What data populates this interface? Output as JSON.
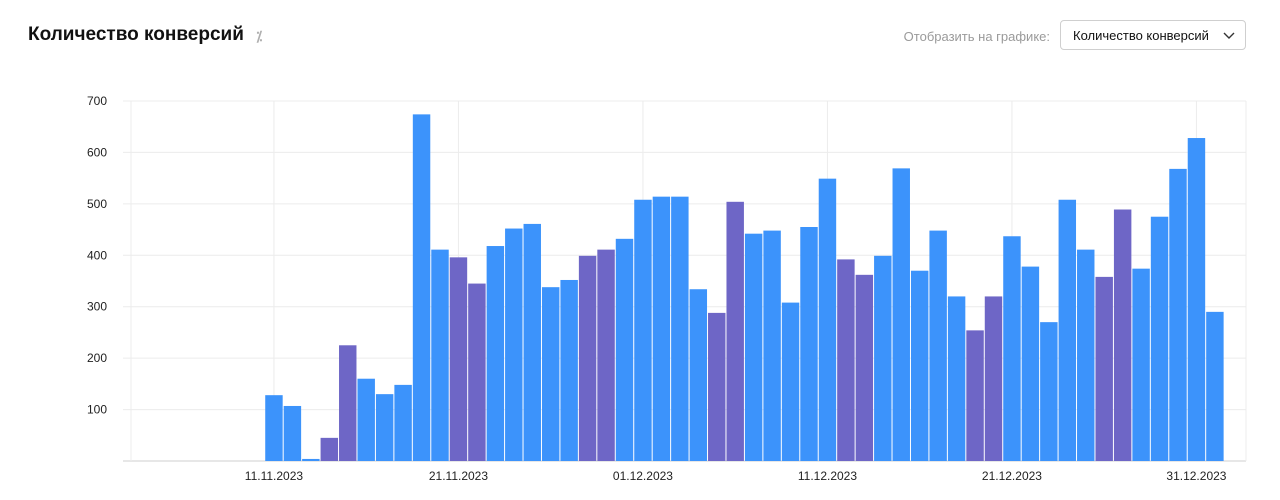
{
  "header": {
    "title": "Количество конверсий",
    "percent_icon": "percent-icon",
    "display_label": "Отобразить на графике:",
    "select_value": "Количество конверсий",
    "select_icon": "chevron-down-icon"
  },
  "colors": {
    "weekday": "#3c93fb",
    "weekend": "#6e66c6",
    "holiday_label": "#d0021b",
    "grid": "#ececec",
    "axis": "#cfcfcf"
  },
  "chart_data": {
    "type": "bar",
    "title": "Количество конверсий",
    "xlabel": "",
    "ylabel": "",
    "ylim": [
      0,
      700
    ],
    "yticks": [
      100,
      200,
      300,
      400,
      500,
      600,
      700
    ],
    "x_range": [
      "2023-11-04",
      "2023-12-31"
    ],
    "xticks": [
      {
        "date": "2023-11-11",
        "label": "11.11.2023",
        "highlight": true
      },
      {
        "date": "2023-11-21",
        "label": "21.11.2023",
        "highlight": false
      },
      {
        "date": "2023-12-01",
        "label": "01.12.2023",
        "highlight": false
      },
      {
        "date": "2023-12-11",
        "label": "11.12.2023",
        "highlight": false
      },
      {
        "date": "2023-12-21",
        "label": "21.12.2023",
        "highlight": false
      },
      {
        "date": "2023-12-31",
        "label": "31.12.2023",
        "highlight": true
      }
    ],
    "grid": true,
    "legend": "none",
    "bars": [
      {
        "date": "2023-11-11",
        "value": 128,
        "weekend": false
      },
      {
        "date": "2023-11-12",
        "value": 107,
        "weekend": false
      },
      {
        "date": "2023-11-13",
        "value": 4,
        "weekend": false
      },
      {
        "date": "2023-11-14",
        "value": 45,
        "weekend": true
      },
      {
        "date": "2023-11-15",
        "value": 225,
        "weekend": true
      },
      {
        "date": "2023-11-16",
        "value": 160,
        "weekend": false
      },
      {
        "date": "2023-11-17",
        "value": 130,
        "weekend": false
      },
      {
        "date": "2023-11-18",
        "value": 148,
        "weekend": false
      },
      {
        "date": "2023-11-19",
        "value": 674,
        "weekend": false
      },
      {
        "date": "2023-11-20",
        "value": 411,
        "weekend": false
      },
      {
        "date": "2023-11-21",
        "value": 396,
        "weekend": true
      },
      {
        "date": "2023-11-22",
        "value": 345,
        "weekend": true
      },
      {
        "date": "2023-11-23",
        "value": 418,
        "weekend": false
      },
      {
        "date": "2023-11-24",
        "value": 452,
        "weekend": false
      },
      {
        "date": "2023-11-25",
        "value": 461,
        "weekend": false
      },
      {
        "date": "2023-11-26",
        "value": 338,
        "weekend": false
      },
      {
        "date": "2023-11-27",
        "value": 352,
        "weekend": false
      },
      {
        "date": "2023-11-28",
        "value": 399,
        "weekend": true
      },
      {
        "date": "2023-11-29",
        "value": 411,
        "weekend": true
      },
      {
        "date": "2023-11-30",
        "value": 432,
        "weekend": false
      },
      {
        "date": "2023-12-01",
        "value": 508,
        "weekend": false
      },
      {
        "date": "2023-12-02",
        "value": 514,
        "weekend": false
      },
      {
        "date": "2023-12-03",
        "value": 514,
        "weekend": false
      },
      {
        "date": "2023-12-04",
        "value": 334,
        "weekend": false
      },
      {
        "date": "2023-12-05",
        "value": 288,
        "weekend": true
      },
      {
        "date": "2023-12-06",
        "value": 504,
        "weekend": true
      },
      {
        "date": "2023-12-07",
        "value": 442,
        "weekend": false
      },
      {
        "date": "2023-12-08",
        "value": 448,
        "weekend": false
      },
      {
        "date": "2023-12-09",
        "value": 308,
        "weekend": false
      },
      {
        "date": "2023-12-10",
        "value": 455,
        "weekend": false
      },
      {
        "date": "2023-12-11",
        "value": 549,
        "weekend": false
      },
      {
        "date": "2023-12-12",
        "value": 392,
        "weekend": true
      },
      {
        "date": "2023-12-13",
        "value": 362,
        "weekend": true
      },
      {
        "date": "2023-12-14",
        "value": 399,
        "weekend": false
      },
      {
        "date": "2023-12-15",
        "value": 569,
        "weekend": false
      },
      {
        "date": "2023-12-16",
        "value": 370,
        "weekend": false
      },
      {
        "date": "2023-12-17",
        "value": 448,
        "weekend": false
      },
      {
        "date": "2023-12-18",
        "value": 320,
        "weekend": false
      },
      {
        "date": "2023-12-19",
        "value": 254,
        "weekend": true
      },
      {
        "date": "2023-12-20",
        "value": 320,
        "weekend": true
      },
      {
        "date": "2023-12-21",
        "value": 437,
        "weekend": false
      },
      {
        "date": "2023-12-22",
        "value": 378,
        "weekend": false
      },
      {
        "date": "2023-12-23",
        "value": 270,
        "weekend": false
      },
      {
        "date": "2023-12-24",
        "value": 508,
        "weekend": false
      },
      {
        "date": "2023-12-25",
        "value": 411,
        "weekend": false
      },
      {
        "date": "2023-12-26",
        "value": 358,
        "weekend": true
      },
      {
        "date": "2023-12-27",
        "value": 489,
        "weekend": true
      },
      {
        "date": "2023-12-28",
        "value": 374,
        "weekend": false
      },
      {
        "date": "2023-12-29",
        "value": 475,
        "weekend": false
      },
      {
        "date": "2023-12-30",
        "value": 568,
        "weekend": false
      },
      {
        "date": "2023-12-31",
        "value": 628,
        "weekend": false
      },
      {
        "date": "2024-01-01",
        "value": 290,
        "weekend": false
      }
    ]
  }
}
